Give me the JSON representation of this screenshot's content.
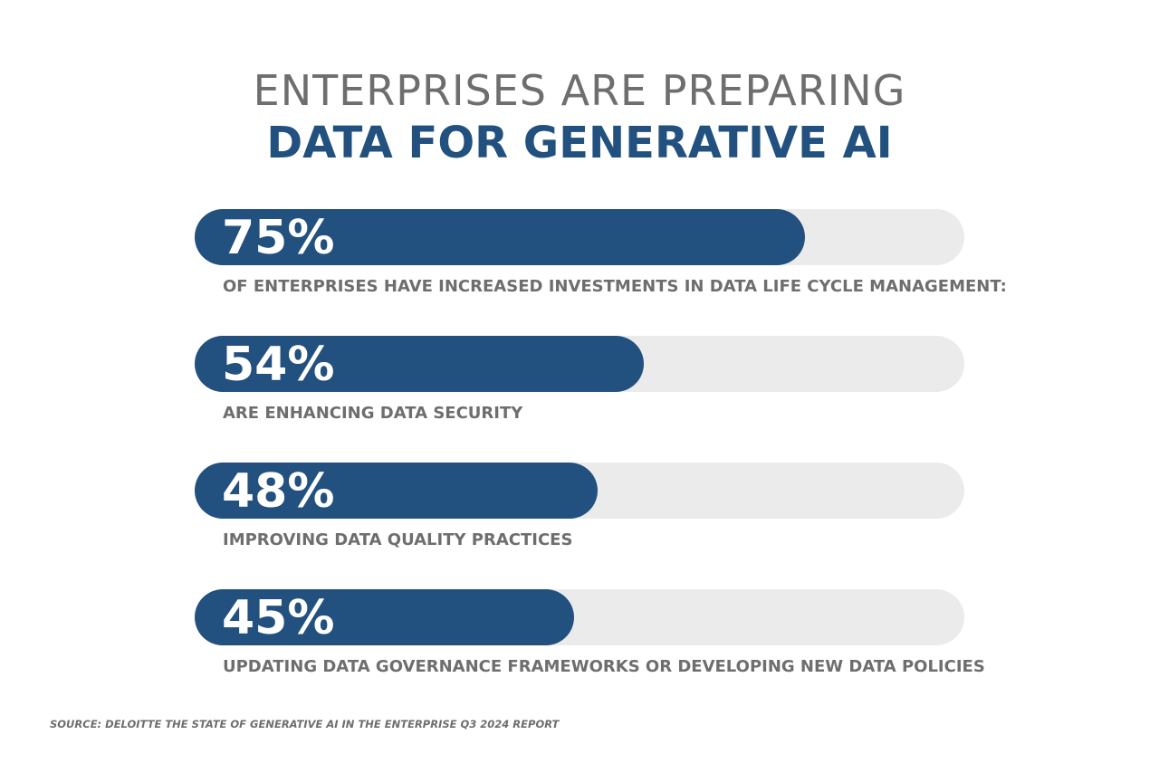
{
  "title": {
    "line1": "ENTERPRISES ARE PREPARING",
    "line2": "DATA FOR GENERATIVE AI"
  },
  "colors": {
    "fill": "#22507f",
    "track": "#ebebeb",
    "text_gray": "#6e6e6e"
  },
  "chart_data": {
    "type": "bar",
    "orientation": "horizontal",
    "title": "ENTERPRISES ARE PREPARING DATA FOR GENERATIVE AI",
    "xlim": [
      0,
      100
    ],
    "items": [
      {
        "value": 75,
        "label": "75%",
        "description": "OF ENTERPRISES HAVE INCREASED INVESTMENTS IN DATA LIFE CYCLE MANAGEMENT:"
      },
      {
        "value": 54,
        "label": "54%",
        "description": "ARE ENHANCING DATA SECURITY"
      },
      {
        "value": 48,
        "label": "48%",
        "description": "IMPROVING DATA QUALITY PRACTICES"
      },
      {
        "value": 45,
        "label": "45%",
        "description": "UPDATING DATA GOVERNANCE FRAMEWORKS OR DEVELOPING NEW DATA POLICIES"
      }
    ]
  },
  "source": "SOURCE: DELOITTE THE STATE OF GENERATIVE AI IN THE ENTERPRISE Q3 2024 REPORT"
}
